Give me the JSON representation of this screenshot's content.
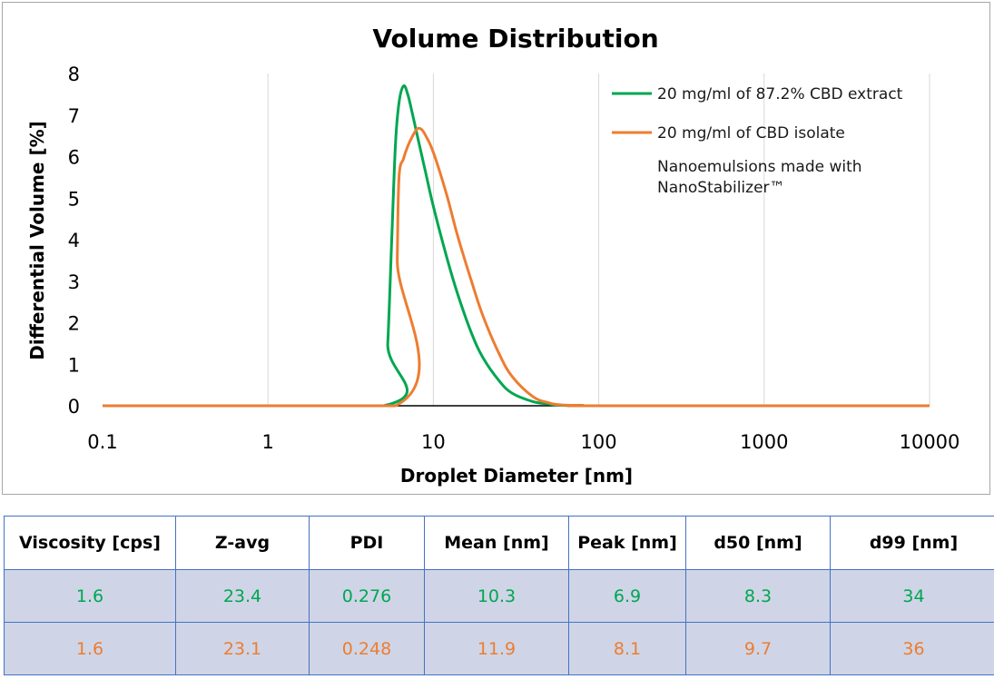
{
  "chart_data": {
    "type": "line",
    "title": "Volume Distribution",
    "xlabel": "Droplet Diameter [nm]",
    "ylabel": "Differential Volume [%]",
    "x_scale": "log",
    "xlim": [
      0.1,
      10000
    ],
    "ylim": [
      0,
      8
    ],
    "x_ticks": [
      "0.1",
      "1",
      "10",
      "100",
      "1000",
      "10000"
    ],
    "y_ticks": [
      "0",
      "1",
      "2",
      "3",
      "4",
      "5",
      "6",
      "7",
      "8"
    ],
    "grid": "vertical",
    "legend_position": "top-right",
    "series": [
      {
        "name": "20 mg/ml of 87.2% CBD extract",
        "color": "#00a651",
        "x": [
          0.1,
          5.0,
          5.3,
          5.6,
          5.9,
          6.2,
          6.6,
          7.0,
          7.5,
          8.0,
          9.0,
          10.0,
          12.0,
          14.0,
          17.0,
          20.0,
          25.0,
          30.0,
          40.0,
          50.0,
          60.0,
          80.0,
          100.0,
          10000.0
        ],
        "values": [
          0,
          0,
          1.5,
          4.0,
          6.3,
          7.3,
          7.7,
          7.5,
          7.0,
          6.5,
          5.6,
          4.8,
          3.6,
          2.7,
          1.75,
          1.15,
          0.6,
          0.3,
          0.1,
          0.04,
          0.01,
          0,
          0,
          0
        ]
      },
      {
        "name": "20 mg/ml of CBD isolate",
        "color": "#ed7d31",
        "x": [
          0.1,
          5.9,
          6.05,
          6.2,
          6.6,
          7.0,
          7.5,
          8.0,
          8.5,
          9.0,
          10.0,
          12.0,
          14.0,
          17.0,
          20.0,
          25.0,
          30.0,
          40.0,
          50.0,
          60.0,
          80.0,
          100.0,
          10000.0
        ],
        "values": [
          0,
          0,
          3.5,
          5.5,
          5.95,
          6.25,
          6.5,
          6.67,
          6.65,
          6.5,
          6.1,
          5.1,
          4.1,
          3.0,
          2.15,
          1.25,
          0.7,
          0.22,
          0.07,
          0.02,
          0.01,
          0,
          0
        ]
      }
    ],
    "annotation": "Nanoemulsions made with NanoStabilizer™"
  },
  "table": {
    "headers": [
      "Viscosity [cps]",
      "Z-avg",
      "PDI",
      "Mean [nm]",
      "Peak [nm]",
      "d50 [nm]",
      "d99 [nm]"
    ],
    "rows": [
      [
        "1.6",
        "23.4",
        "0.276",
        "10.3",
        "6.9",
        "8.3",
        "34"
      ],
      [
        "1.6",
        "23.1",
        "0.248",
        "11.9",
        "8.1",
        "9.7",
        "36"
      ]
    ],
    "row_colors": [
      "#00a651",
      "#ed7d31"
    ]
  }
}
